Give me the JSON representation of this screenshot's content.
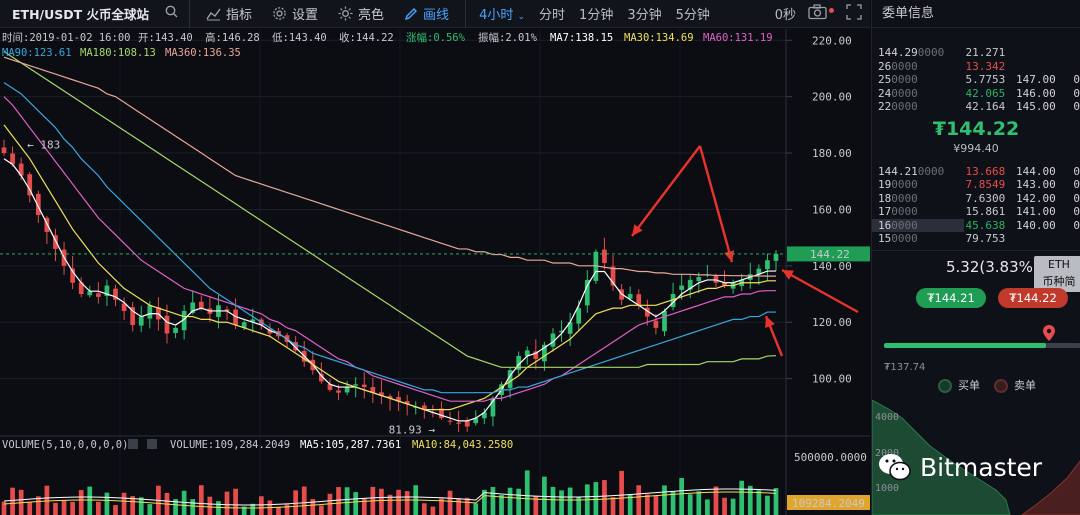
{
  "toolbar": {
    "pair": "ETH/USDT 火币全球站",
    "buttons": [
      {
        "label": "指标",
        "icon": "indicator-icon"
      },
      {
        "label": "设置",
        "icon": "gear-icon"
      },
      {
        "label": "亮色",
        "icon": "sun-icon"
      },
      {
        "label": "画线",
        "icon": "pen-icon"
      }
    ],
    "active_interval": "4小时",
    "intervals": [
      "分时",
      "1分钟",
      "3分钟",
      "5分钟"
    ],
    "countdown": "0秒"
  },
  "info_bar": {
    "time": "时间:2019-01-02 16:00",
    "open": "开:143.40",
    "high": "高:146.28",
    "low": "低:143.40",
    "close": "收:144.22",
    "change": "涨幅:0.56%",
    "amplitude": "振幅:2.01%",
    "ma7": "MA7:138.15",
    "ma30": "MA30:134.69",
    "ma60": "MA60:131.19",
    "ma90": "MA90:123.61",
    "ma180": "MA180:108.13",
    "ma360": "MA360:136.35"
  },
  "volume_bar": {
    "label": "VOLUME(5,10,0,0,0,0)",
    "volume": "VOLUME:109,284.2049",
    "ma5": "MA5:105,287.7361",
    "ma10": "MA10:84,043.2580"
  },
  "colors": {
    "up": "#2fbf71",
    "down": "#e74c4c",
    "ma7": "#ffffff",
    "ma30": "#f1e05a",
    "ma60": "#e060c8",
    "ma90": "#3aa6e0",
    "ma180": "#a8d86a",
    "ma360": "#e8a79a",
    "arrow": "#e8332c"
  },
  "chart_data": {
    "type": "candlestick",
    "y_axis_ticks": [
      100,
      120,
      140,
      160,
      180,
      200,
      220
    ],
    "ylim": [
      80,
      224
    ],
    "current_price": 144.22,
    "annotations": {
      "max_label": "← 183",
      "max_value": 183,
      "min_label": "81.93 →",
      "min_value": 81.93
    },
    "volume_axis_tick": "500000.0000",
    "volume_current": "109284.2049",
    "close_series": [
      180,
      176,
      172,
      165,
      158,
      152,
      146,
      140,
      134,
      130,
      131,
      129,
      133,
      128,
      124,
      119,
      122,
      126,
      121,
      116,
      118,
      124,
      127,
      125,
      123,
      126,
      124,
      119,
      120,
      121,
      119,
      116,
      115,
      113,
      110,
      106,
      103,
      99,
      96,
      95,
      97,
      98,
      97,
      95,
      94,
      93,
      92,
      91,
      90,
      89,
      88,
      86,
      85,
      84,
      83,
      86,
      88,
      93,
      98,
      103,
      108,
      110,
      107,
      112,
      116,
      117,
      120,
      125,
      135,
      145,
      141,
      133,
      128,
      130,
      126,
      122,
      118,
      124,
      130,
      133,
      135,
      136,
      137,
      134,
      133,
      134,
      135,
      137,
      139,
      142,
      144.22
    ],
    "ma_series": {
      "MA7": [
        178,
        176,
        172,
        167,
        161,
        155,
        149,
        143,
        138,
        134,
        131,
        131,
        130,
        129,
        127,
        124,
        122,
        123,
        123,
        120,
        119,
        121,
        124,
        125,
        124,
        124,
        124,
        122,
        121,
        120,
        119,
        117,
        116,
        114,
        111,
        108,
        105,
        101,
        98,
        97,
        97,
        97,
        96,
        95,
        94,
        93,
        92,
        91,
        90,
        89,
        88,
        87,
        86,
        85,
        85,
        86,
        88,
        92,
        96,
        101,
        105,
        108,
        109,
        111,
        113,
        116,
        120,
        126,
        133,
        138,
        138,
        134,
        130,
        128,
        126,
        124,
        122,
        124,
        127,
        130,
        132,
        134,
        135,
        135,
        134,
        134,
        135,
        136,
        137,
        138.15,
        138.15
      ],
      "MA30": [
        190,
        186,
        182,
        178,
        173,
        168,
        163,
        158,
        153,
        149,
        145,
        141,
        138,
        135,
        132,
        130,
        128,
        126,
        125,
        124,
        123,
        122,
        122,
        121,
        121,
        120,
        120,
        119,
        118,
        117,
        116,
        115,
        113,
        111,
        109,
        107,
        105,
        103,
        101,
        99,
        98,
        97,
        96,
        95,
        94,
        93,
        92,
        91,
        90,
        89,
        89,
        89,
        89,
        90,
        91,
        92,
        93,
        95,
        97,
        99,
        101,
        104,
        106,
        108,
        110,
        112,
        114,
        117,
        120,
        123,
        124,
        125,
        125,
        126,
        126,
        126,
        126,
        127,
        128,
        129,
        130,
        131,
        132,
        132,
        133,
        133,
        134,
        134,
        134,
        134.69,
        134.69
      ],
      "MA60": [
        200,
        197,
        193,
        189,
        185,
        181,
        177,
        173,
        169,
        165,
        161,
        157,
        154,
        151,
        148,
        145,
        142,
        140,
        138,
        136,
        134,
        132,
        131,
        130,
        129,
        128,
        127,
        126,
        125,
        124,
        123,
        121,
        120,
        118,
        117,
        115,
        113,
        111,
        109,
        107,
        106,
        104,
        103,
        101,
        100,
        99,
        98,
        97,
        96,
        95,
        94,
        93,
        92,
        92,
        92,
        92,
        92,
        93,
        93,
        94,
        95,
        96,
        97,
        98,
        100,
        101,
        103,
        105,
        107,
        109,
        111,
        113,
        115,
        117,
        119,
        120,
        121,
        122,
        123,
        124,
        125,
        126,
        127,
        128,
        129,
        129,
        130,
        130,
        131,
        131.19,
        131.19
      ],
      "MA90": [
        205,
        203,
        201,
        198,
        195,
        192,
        189,
        185,
        182,
        178,
        175,
        172,
        168,
        165,
        162,
        159,
        156,
        153,
        150,
        147,
        144,
        141,
        138,
        135,
        132,
        130,
        128,
        126,
        124,
        122,
        120,
        118,
        116,
        114,
        112,
        111,
        109,
        108,
        107,
        106,
        105,
        104,
        103,
        102,
        101,
        100,
        99,
        98,
        97,
        96,
        96,
        95,
        95,
        95,
        95,
        95,
        95,
        95,
        96,
        96,
        97,
        97,
        98,
        99,
        100,
        101,
        102,
        103,
        104,
        105,
        106,
        107,
        108,
        109,
        110,
        111,
        112,
        113,
        114,
        115,
        116,
        117,
        118,
        119,
        120,
        121,
        121,
        122,
        122,
        123.61,
        123.61
      ],
      "MA180": [
        216,
        214,
        212,
        210,
        208,
        206,
        204,
        202,
        200,
        198,
        196,
        194,
        192,
        190,
        188,
        186,
        184,
        182,
        180,
        178,
        176,
        174,
        172,
        170,
        168,
        166,
        164,
        162,
        160,
        158,
        156,
        154,
        152,
        150,
        148,
        146,
        144,
        142,
        140,
        138,
        136,
        134,
        132,
        130,
        128,
        126,
        124,
        122,
        120,
        118,
        116,
        114,
        112,
        110,
        108,
        107,
        106,
        105,
        104,
        104,
        104,
        104,
        104,
        104,
        104,
        104,
        104,
        104,
        104,
        104,
        104,
        104,
        104,
        104,
        104,
        105,
        105,
        105,
        105,
        105,
        105,
        105,
        106,
        106,
        106,
        106,
        107,
        107,
        107,
        108,
        108.13
      ],
      "MA360": [
        214,
        213,
        212,
        211,
        210,
        209,
        208,
        207,
        206,
        205,
        204,
        203,
        201,
        200,
        198,
        196,
        194,
        192,
        190,
        188,
        186,
        184,
        182,
        180,
        178,
        176,
        174,
        172,
        171,
        170,
        169,
        168,
        167,
        166,
        165,
        164,
        163,
        162,
        161,
        160,
        159,
        158,
        157,
        156,
        155,
        154,
        153,
        152,
        151,
        150,
        149,
        148,
        147,
        146,
        146,
        145,
        145,
        144,
        144,
        143,
        143,
        142,
        142,
        142,
        141,
        141,
        141,
        140,
        140,
        140,
        139.5,
        139,
        139,
        138.5,
        138,
        138,
        137.5,
        137.5,
        137,
        137,
        137,
        136.8,
        136.8,
        136.6,
        136.6,
        136.5,
        136.5,
        136.4,
        136.4,
        136.35,
        136.35
      ]
    }
  },
  "right_panel": {
    "title": "委单信息",
    "asks": [
      {
        "price": "144.29",
        "ghost": "0000",
        "amount": "21.271",
        "total": "",
        "depth": ""
      },
      {
        "price": "26",
        "ghost": "0000",
        "amount": "13.342",
        "total": "",
        "depth": ""
      },
      {
        "price": "25",
        "ghost": "0000",
        "amount": "5.7753",
        "total": "147.00",
        "depth": "0"
      },
      {
        "price": "24",
        "ghost": "0000",
        "amount": "42.065",
        "total": "146.00",
        "depth": "0"
      },
      {
        "price": "22",
        "ghost": "0000",
        "amount": "42.164",
        "total": "145.00",
        "depth": "0"
      }
    ],
    "last_price": "₮144.22",
    "last_price_cny": "¥994.40",
    "bids": [
      {
        "price": "144.21",
        "ghost": "0000",
        "amount": "13.668",
        "total": "144.00",
        "depth": "0"
      },
      {
        "price": "19",
        "ghost": "0000",
        "amount": "7.8549",
        "total": "143.00",
        "depth": "0"
      },
      {
        "price": "18",
        "ghost": "0000",
        "amount": "7.6300",
        "total": "142.00",
        "depth": "0"
      },
      {
        "price": "17",
        "ghost": "0000",
        "amount": "15.861",
        "total": "141.00",
        "depth": "0"
      },
      {
        "price": "16",
        "ghost": "0000",
        "amount": "45.638",
        "total": "140.00",
        "depth": "0"
      },
      {
        "price": "15",
        "ghost": "0000",
        "amount": "79.753",
        "total": "",
        "depth": ""
      }
    ],
    "change_text": "5.32(3.83%",
    "tooltip_line1": "ETH",
    "tooltip_line2": "币种简",
    "buy_price": "₮144.21",
    "sell_price": "₮144.22",
    "range_low": "₮137.74",
    "range_fill": 0.82,
    "legend_buy": "买单",
    "legend_sell": "卖单",
    "depth_ticks": [
      "4000",
      "2000",
      "1000"
    ],
    "watermark": "Bitmaster"
  }
}
